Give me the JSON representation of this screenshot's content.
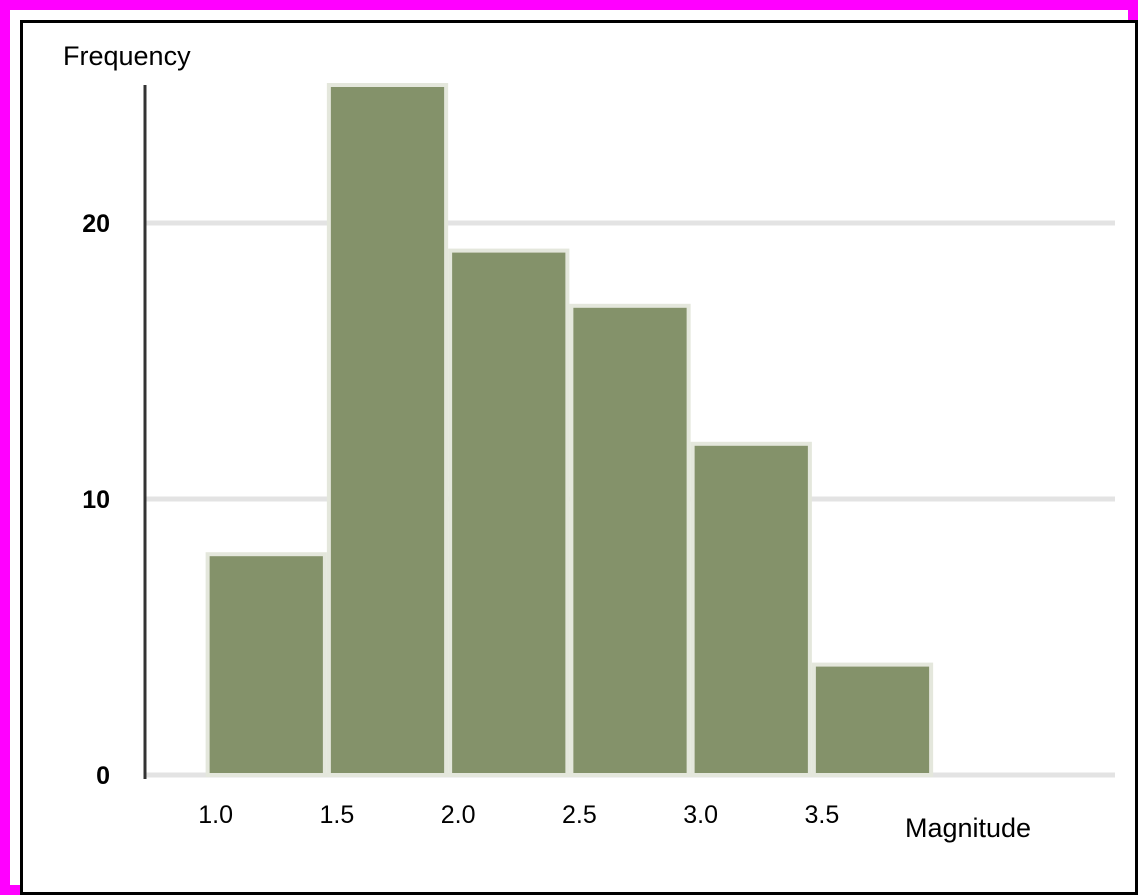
{
  "chart_data": {
    "type": "bar",
    "title": "",
    "xlabel": "Magnitude",
    "ylabel": "Frequency",
    "x_tick_labels": [
      "1.0",
      "1.5",
      "2.0",
      "2.5",
      "3.0",
      "3.5"
    ],
    "bins": [
      {
        "from": 1.0,
        "to": 1.5,
        "value": 8
      },
      {
        "from": 1.5,
        "to": 2.0,
        "value": 25
      },
      {
        "from": 2.0,
        "to": 2.5,
        "value": 19
      },
      {
        "from": 2.5,
        "to": 3.0,
        "value": 17
      },
      {
        "from": 3.0,
        "to": 3.5,
        "value": 12
      },
      {
        "from": 3.5,
        "to": 4.0,
        "value": 4
      }
    ],
    "y_ticks": [
      0,
      10,
      20
    ],
    "xlim": [
      0.75,
      4.75
    ],
    "ylim": [
      0,
      25
    ],
    "grid": true,
    "bar_color": "#84926a",
    "bar_edge_color": "#e4e7dc",
    "grid_color": "#e3e3e3",
    "axis_color": "#333333"
  },
  "colors": {
    "outer_border": "#ff00ff",
    "inner_border": "#000000",
    "background": "#ffffff"
  }
}
